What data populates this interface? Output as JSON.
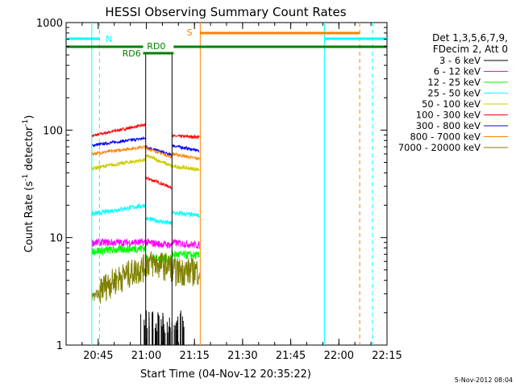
{
  "chart_data": {
    "type": "line",
    "title": "HESSI Observing Summary Count Rates",
    "xlabel": "Start Time (04-Nov-12 20:35:22)",
    "ylabel_main": "Count Rate (s",
    "ylabel_sup1": "-1",
    "ylabel_mid": " detector",
    "ylabel_sup2": "-1",
    "ylabel_end": ")",
    "yscale": "log",
    "ylim": [
      1,
      1000
    ],
    "xlim_minutes": [
      0,
      100
    ],
    "xtick_labels": [
      "20:45",
      "21:00",
      "21:15",
      "21:30",
      "21:45",
      "22:00",
      "22:15"
    ],
    "xtick_minutes": [
      10,
      25,
      40,
      55,
      70,
      85,
      100
    ],
    "ytick_labels": [
      "1",
      "10",
      "100",
      "1000"
    ],
    "ytick_values": [
      1,
      10,
      100,
      1000
    ],
    "legend_position": "right",
    "legend_header": [
      "Det 1,3,5,6,7,9,",
      "FDecim 2, Att 0"
    ],
    "series": [
      {
        "name": "3 - 6 keV",
        "color": "#000000"
      },
      {
        "name": "6 - 12 keV",
        "color": "#ff00ff"
      },
      {
        "name": "12 - 25 keV",
        "color": "#00ff00"
      },
      {
        "name": "25 - 50 keV",
        "color": "#00ffff"
      },
      {
        "name": "50 - 100 keV",
        "color": "#cccc00"
      },
      {
        "name": "100 - 300 keV",
        "color": "#ff0000"
      },
      {
        "name": "300 - 800 keV",
        "color": "#0000ff"
      },
      {
        "name": "800 - 7000 keV",
        "color": "#ff8000"
      },
      {
        "name": "7000 - 20000 keV",
        "color": "#808000"
      }
    ],
    "annotations": [
      {
        "label": "N",
        "color": "#00ffff"
      },
      {
        "label": "S",
        "color": "#ff8000"
      },
      {
        "label": "RD0",
        "color": "#008000"
      },
      {
        "label": "RD6",
        "color": "#008000"
      }
    ],
    "timestamp": "5-Nov-2012 08:04"
  }
}
